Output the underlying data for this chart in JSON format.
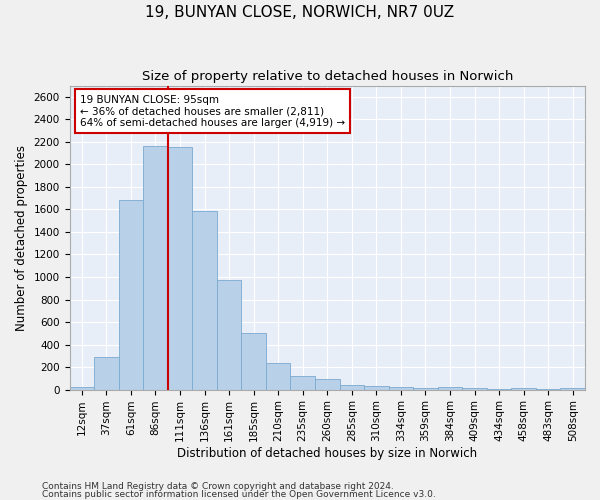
{
  "title1": "19, BUNYAN CLOSE, NORWICH, NR7 0UZ",
  "title2": "Size of property relative to detached houses in Norwich",
  "xlabel": "Distribution of detached houses by size in Norwich",
  "ylabel": "Number of detached properties",
  "bar_color": "#b8d0e8",
  "bar_edge_color": "#7aaad0",
  "background_color": "#e8eef8",
  "grid_color": "#ffffff",
  "fig_color": "#f0f0f0",
  "categories": [
    "12sqm",
    "37sqm",
    "61sqm",
    "86sqm",
    "111sqm",
    "136sqm",
    "161sqm",
    "185sqm",
    "210sqm",
    "235sqm",
    "260sqm",
    "285sqm",
    "310sqm",
    "334sqm",
    "359sqm",
    "384sqm",
    "409sqm",
    "434sqm",
    "458sqm",
    "483sqm",
    "508sqm"
  ],
  "values": [
    20,
    290,
    1680,
    2160,
    2150,
    1590,
    970,
    500,
    240,
    120,
    95,
    45,
    30,
    20,
    15,
    20,
    10,
    5,
    10,
    5,
    15
  ],
  "property_line_x": 3.5,
  "annotation_text": "19 BUNYAN CLOSE: 95sqm\n← 36% of detached houses are smaller (2,811)\n64% of semi-detached houses are larger (4,919) →",
  "annotation_box_color": "#ffffff",
  "annotation_box_edge": "#cc0000",
  "vline_color": "#cc0000",
  "ylim": [
    0,
    2700
  ],
  "yticks": [
    0,
    200,
    400,
    600,
    800,
    1000,
    1200,
    1400,
    1600,
    1800,
    2000,
    2200,
    2400,
    2600
  ],
  "footer1": "Contains HM Land Registry data © Crown copyright and database right 2024.",
  "footer2": "Contains public sector information licensed under the Open Government Licence v3.0.",
  "title1_fontsize": 11,
  "title2_fontsize": 9.5,
  "tick_fontsize": 7.5,
  "label_fontsize": 8.5,
  "annotation_fontsize": 7.5,
  "footer_fontsize": 6.5
}
